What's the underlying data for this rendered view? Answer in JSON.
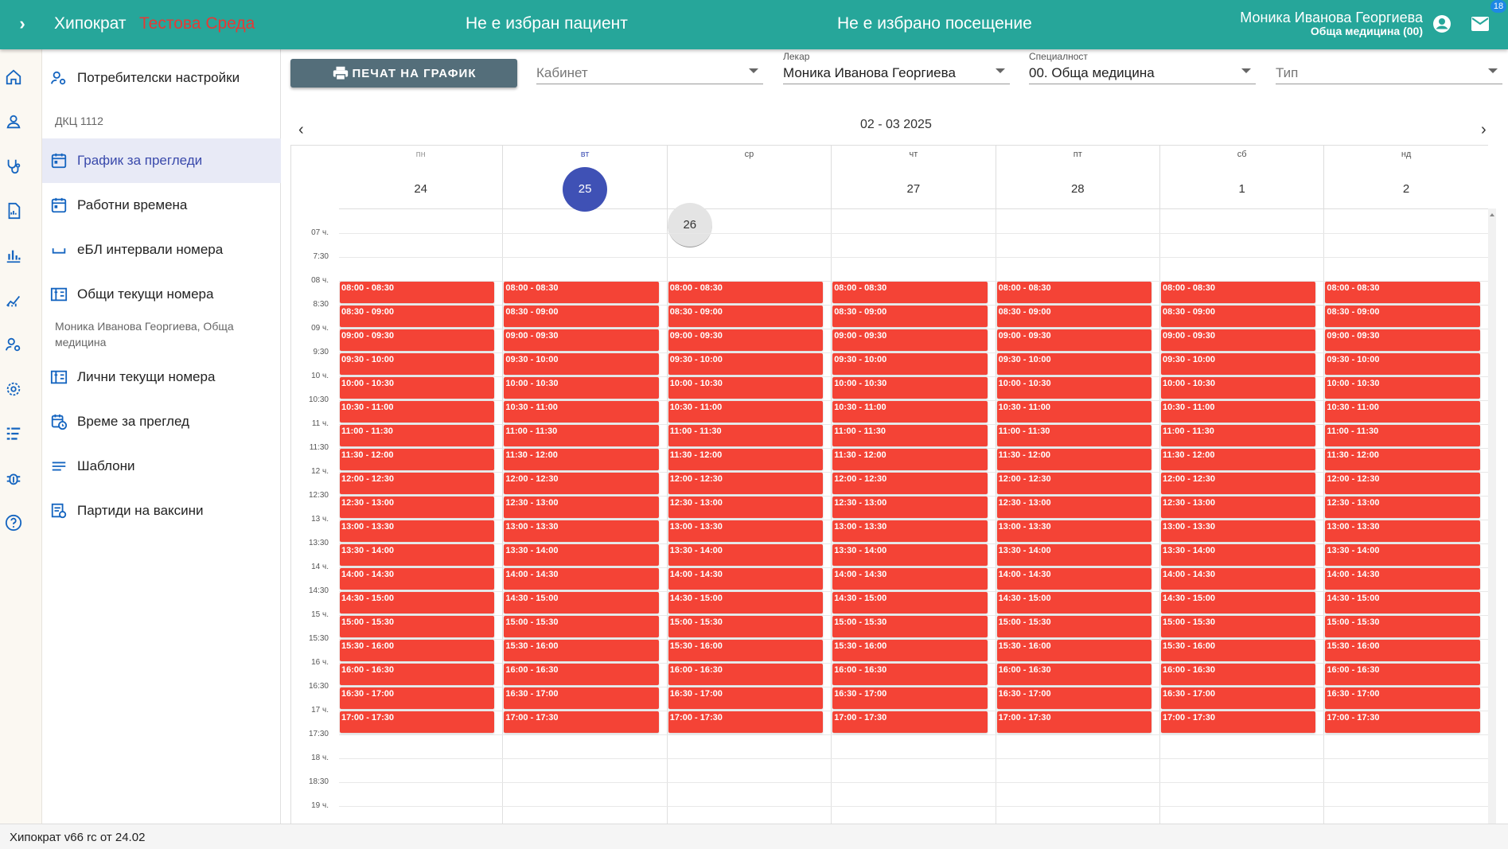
{
  "header": {
    "app_title": "Хипократ",
    "environment": "Тестова Среда",
    "patient_status": "Не е избран пациент",
    "visit_status": "Не е избрано посещение",
    "user_name": "Моника Иванова Георгиева",
    "user_specialty": "Обща медицина (00)",
    "mail_count": "18"
  },
  "rail": {
    "icons": [
      "home-icon",
      "person-icon",
      "stethoscope-icon",
      "report-icon",
      "bar-chart-icon",
      "trend-chart-icon",
      "user-settings-icon",
      "settings-icon",
      "list-icon",
      "bug-icon",
      "help-icon"
    ]
  },
  "menu": {
    "item_user_settings": "Потребителски настройки",
    "header_dkc": "ДКЦ 1112",
    "item_schedule": "График за прегледи",
    "item_work_times": "Работни времена",
    "item_ebl": "еБЛ интервали номера",
    "item_common_numbers": "Общи текущи номера",
    "header_doctor": "Моника Иванова Георгиева, Обща медицина",
    "item_personal_numbers": "Лични текущи номера",
    "item_exam_time": "Време за преглед",
    "item_templates": "Шаблони",
    "item_vaccines": "Партиди на ваксини"
  },
  "toolbar": {
    "print_label": "ПЕЧАТ НА ГРАФИК",
    "cabinet_placeholder": "Кабинет",
    "doctor_label": "Лекар",
    "doctor_value": "Моника Иванова Георгиева",
    "specialty_label": "Специалност",
    "specialty_value": "00. Обща медицина",
    "type_placeholder": "Тип"
  },
  "calendar": {
    "week_label": "02 - 03 2025",
    "nav_prev": "‹",
    "nav_next": "›",
    "days": [
      {
        "name": "пн",
        "date": "24",
        "state": "past"
      },
      {
        "name": "вт",
        "date": "25",
        "state": "today"
      },
      {
        "name": "ср",
        "date": "26",
        "state": "selected"
      },
      {
        "name": "чт",
        "date": "27",
        "state": "normal"
      },
      {
        "name": "пт",
        "date": "28",
        "state": "normal"
      },
      {
        "name": "сб",
        "date": "1",
        "state": "normal"
      },
      {
        "name": "нд",
        "date": "2",
        "state": "normal"
      }
    ],
    "time_labels": [
      "07 ч.",
      "7:30",
      "08 ч.",
      "8:30",
      "09 ч.",
      "9:30",
      "10 ч.",
      "10:30",
      "11 ч.",
      "11:30",
      "12 ч.",
      "12:30",
      "13 ч.",
      "13:30",
      "14 ч.",
      "14:30",
      "15 ч.",
      "15:30",
      "16 ч.",
      "16:30",
      "17 ч.",
      "17:30",
      "18 ч.",
      "18:30",
      "19 ч."
    ],
    "slots": [
      "08:00 - 08:30",
      "08:30 - 09:00",
      "09:00 - 09:30",
      "09:30 - 10:00",
      "10:00 - 10:30",
      "10:30 - 11:00",
      "11:00 - 11:30",
      "11:30 - 12:00",
      "12:00 - 12:30",
      "12:30 - 13:00",
      "13:00 - 13:30",
      "13:30 - 14:00",
      "14:00 - 14:30",
      "14:30 - 15:00",
      "15:00 - 15:30",
      "15:30 - 16:00",
      "16:00 - 16:30",
      "16:30 - 17:00",
      "17:00 - 17:30"
    ],
    "slot_color": "#f44336"
  },
  "footer": {
    "version": "Хипократ v66 rc от 24.02"
  }
}
